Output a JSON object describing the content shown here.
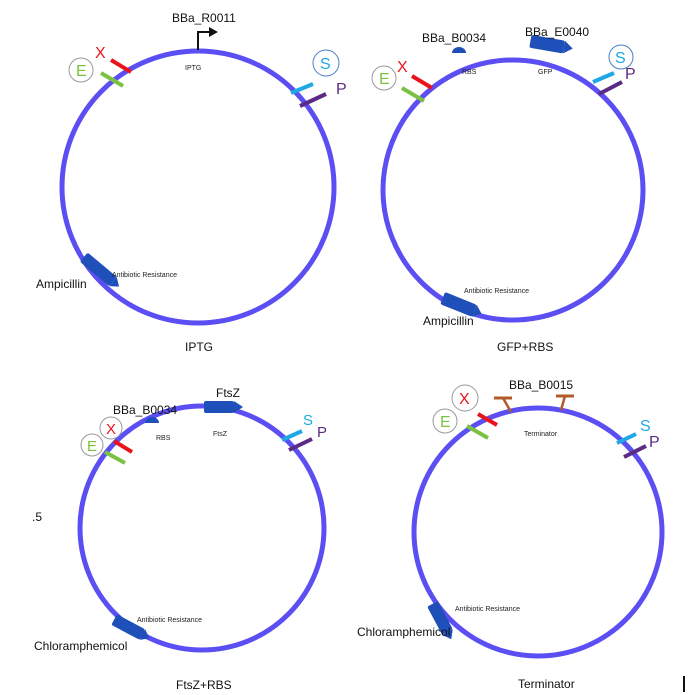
{
  "colors": {
    "ring": "#5b4ef2",
    "part": "#1f4fb8",
    "site_X": "#e8141c",
    "site_E": "#7cc242",
    "site_S": "#1ea8e6",
    "site_P": "#5b2a86",
    "terminator": "#b35a2a",
    "letter_E": "#7cc242",
    "letter_X": "#e8141c",
    "letter_S": "#1ea8e6",
    "letter_P": "#5b2a86"
  },
  "sites": {
    "E": "E",
    "X": "X",
    "S": "S",
    "P": "P"
  },
  "edge_text": ".5",
  "plasmids": [
    {
      "id": "iptg",
      "caption": "IPTG",
      "parts": [
        {
          "name": "BBa_R0011",
          "sub": "IPTG",
          "kind": "promoter"
        }
      ],
      "resistance": {
        "name": "Ampicillin",
        "label": "Antibiotic Resistance"
      }
    },
    {
      "id": "gfp-rbs",
      "caption": "GFP+RBS",
      "parts": [
        {
          "name": "BBa_B0034",
          "sub": "RBS",
          "kind": "rbs"
        },
        {
          "name": "BBa_E0040",
          "sub": "GFP",
          "kind": "cds"
        }
      ],
      "resistance": {
        "name": "Ampicillin",
        "label": "Antibiotic Resistance"
      }
    },
    {
      "id": "ftsz-rbs",
      "caption": "FtsZ+RBS",
      "parts": [
        {
          "name": "BBa_B0034",
          "sub": "RBS",
          "kind": "rbs"
        },
        {
          "name": "FtsZ",
          "sub": "FtsZ",
          "kind": "cds"
        }
      ],
      "resistance": {
        "name": "Chloramphemicol",
        "label": "Antibiotic Resistance"
      }
    },
    {
      "id": "terminator",
      "caption": "Terminator",
      "parts": [
        {
          "name": "BBa_B0015",
          "sub": "Terminator",
          "kind": "terminator"
        }
      ],
      "resistance": {
        "name": "Chloramphemicol",
        "label": "Antibiotic Resistance"
      }
    }
  ]
}
